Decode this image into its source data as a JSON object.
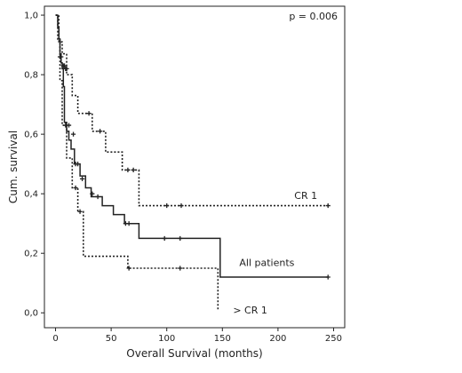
{
  "chart_data": {
    "type": "line",
    "subtype": "kaplan-meier",
    "xlabel": "Overall Survival (months)",
    "ylabel": "Cum. survival",
    "xlim": [
      -10,
      260
    ],
    "ylim": [
      -0.05,
      1.03
    ],
    "xticks": [
      0,
      50,
      100,
      150,
      200,
      250
    ],
    "xtick_labels": [
      "0",
      "50",
      "100",
      "150",
      "200",
      "250"
    ],
    "yticks": [
      0.0,
      0.2,
      0.4,
      0.6,
      0.8,
      1.0
    ],
    "ytick_labels": [
      "0,0",
      "0,2",
      "0,4",
      "0,6",
      "0,8",
      "1,0"
    ],
    "annotations": [
      {
        "text": "p = 0.006"
      }
    ],
    "grid": false,
    "series": [
      {
        "name": "All patients",
        "style": "solid",
        "color": "#222222",
        "label_at": [
          190,
          0.17
        ],
        "steps": [
          [
            0,
            1.0
          ],
          [
            2,
            0.96
          ],
          [
            3,
            0.92
          ],
          [
            4,
            0.87
          ],
          [
            5,
            0.84
          ],
          [
            6,
            0.82
          ],
          [
            7,
            0.76
          ],
          [
            8,
            0.64
          ],
          [
            10,
            0.61
          ],
          [
            12,
            0.58
          ],
          [
            14,
            0.55
          ],
          [
            17,
            0.5
          ],
          [
            22,
            0.46
          ],
          [
            27,
            0.42
          ],
          [
            32,
            0.39
          ],
          [
            42,
            0.36
          ],
          [
            52,
            0.33
          ],
          [
            62,
            0.3
          ],
          [
            75,
            0.25
          ],
          [
            148,
            0.12
          ],
          [
            245,
            0.12
          ]
        ],
        "censored": [
          [
            5,
            0.86
          ],
          [
            8,
            0.83
          ],
          [
            10,
            0.82
          ],
          [
            12,
            0.63
          ],
          [
            16,
            0.6
          ],
          [
            18,
            0.5
          ],
          [
            20,
            0.5
          ],
          [
            24,
            0.45
          ],
          [
            33,
            0.4
          ],
          [
            38,
            0.39
          ],
          [
            63,
            0.3
          ],
          [
            66,
            0.3
          ],
          [
            98,
            0.25
          ],
          [
            112,
            0.25
          ],
          [
            245,
            0.12
          ]
        ]
      },
      {
        "name": "CR 1",
        "style": "dotted",
        "color": "#222222",
        "label_at": [
          225,
          0.395
        ],
        "steps": [
          [
            0,
            1.0
          ],
          [
            3,
            0.91
          ],
          [
            6,
            0.87
          ],
          [
            10,
            0.8
          ],
          [
            15,
            0.73
          ],
          [
            20,
            0.67
          ],
          [
            33,
            0.61
          ],
          [
            45,
            0.54
          ],
          [
            60,
            0.48
          ],
          [
            75,
            0.36
          ],
          [
            245,
            0.36
          ]
        ],
        "censored": [
          [
            4,
            0.86
          ],
          [
            7,
            0.83
          ],
          [
            9,
            0.82
          ],
          [
            30,
            0.67
          ],
          [
            40,
            0.61
          ],
          [
            65,
            0.48
          ],
          [
            70,
            0.48
          ],
          [
            100,
            0.36
          ],
          [
            113,
            0.36
          ],
          [
            245,
            0.36
          ]
        ]
      },
      {
        "name": "> CR 1",
        "style": "dotted",
        "color": "#222222",
        "label_at": [
          175,
          0.01
        ],
        "steps": [
          [
            0,
            1.0
          ],
          [
            2,
            0.92
          ],
          [
            4,
            0.78
          ],
          [
            6,
            0.63
          ],
          [
            10,
            0.52
          ],
          [
            15,
            0.42
          ],
          [
            20,
            0.34
          ],
          [
            25,
            0.19
          ],
          [
            65,
            0.15
          ],
          [
            146,
            0.15
          ],
          [
            146,
            0.01
          ]
        ],
        "censored": [
          [
            9,
            0.63
          ],
          [
            18,
            0.42
          ],
          [
            22,
            0.34
          ],
          [
            66,
            0.15
          ],
          [
            112,
            0.15
          ]
        ]
      }
    ]
  }
}
